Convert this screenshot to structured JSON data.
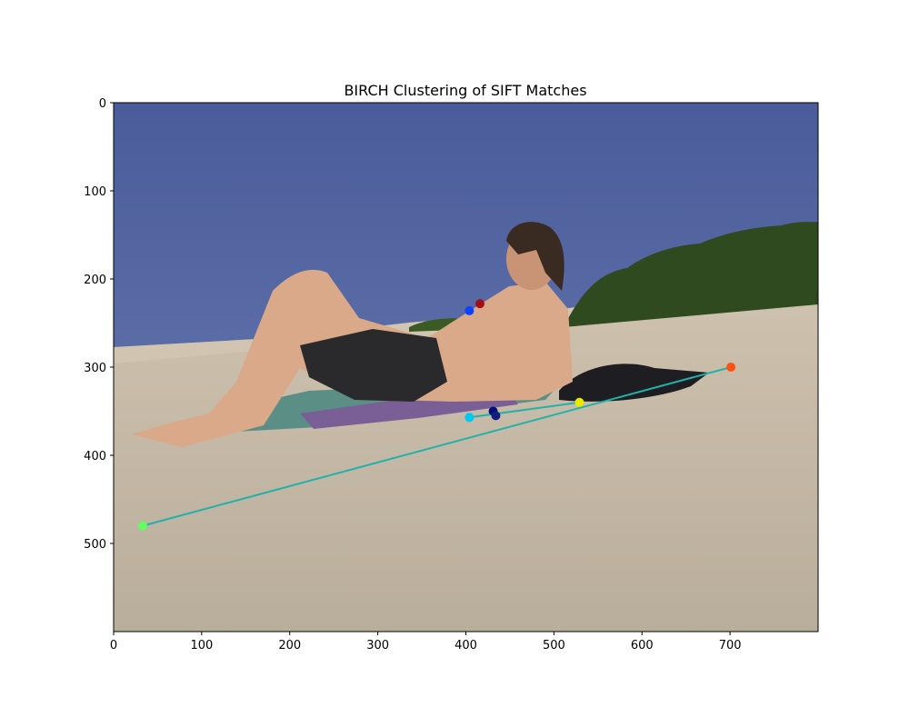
{
  "chart_data": {
    "type": "scatter",
    "title": "BIRCH Clustering of SIFT Matches",
    "xlabel": "",
    "ylabel": "",
    "xlim": [
      0,
      800
    ],
    "ylim": [
      600,
      0
    ],
    "x_ticks": [
      0,
      100,
      200,
      300,
      400,
      500,
      600,
      700
    ],
    "y_ticks": [
      0,
      100,
      200,
      300,
      400,
      500
    ],
    "background_image": "beach-photo: man reclining on towel on sand, blue sky, green shrubs on right",
    "points": [
      {
        "x": 416,
        "y": 228,
        "color": "#a0101a"
      },
      {
        "x": 404,
        "y": 236,
        "color": "#1040ff"
      },
      {
        "x": 404,
        "y": 357,
        "color": "#00c8f0"
      },
      {
        "x": 431,
        "y": 350,
        "color": "#00107a"
      },
      {
        "x": 434,
        "y": 355,
        "color": "#10207a"
      },
      {
        "x": 529,
        "y": 340,
        "color": "#e8e800"
      },
      {
        "x": 701,
        "y": 300,
        "color": "#ff5010"
      },
      {
        "x": 33,
        "y": 480,
        "color": "#60ff60"
      }
    ],
    "lines": [
      {
        "x": [
          33,
          701
        ],
        "y": [
          480,
          300
        ],
        "color": "#20b2aa"
      },
      {
        "x": [
          404,
          529
        ],
        "y": [
          357,
          340
        ],
        "color": "#20b2aa"
      }
    ]
  }
}
